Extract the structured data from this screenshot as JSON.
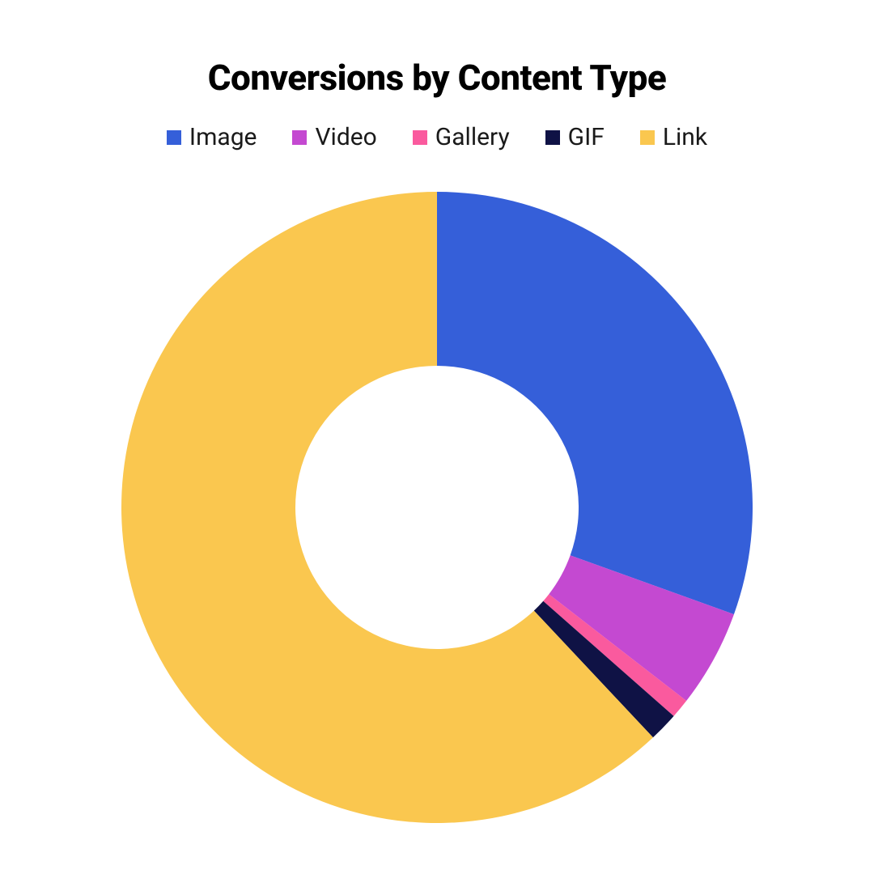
{
  "chart": {
    "type": "donut",
    "title": "Conversions by Content Type",
    "title_fontsize": 44,
    "title_color": "#000000",
    "background_color": "#ffffff",
    "legend_fontsize": 30,
    "legend_text_color": "#1a1a1a",
    "legend_swatch_size": 18,
    "outer_radius": 390,
    "inner_radius": 175,
    "start_angle_deg": -90,
    "series": [
      {
        "label": "Image",
        "value": 30.5,
        "color": "#355fd9"
      },
      {
        "label": "Video",
        "value": 5.0,
        "color": "#c449d1"
      },
      {
        "label": "Gallery",
        "value": 1.0,
        "color": "#fa5a9e"
      },
      {
        "label": "GIF",
        "value": 1.5,
        "color": "#0f1245"
      },
      {
        "label": "Link",
        "value": 62.0,
        "color": "#fac74f"
      }
    ]
  }
}
